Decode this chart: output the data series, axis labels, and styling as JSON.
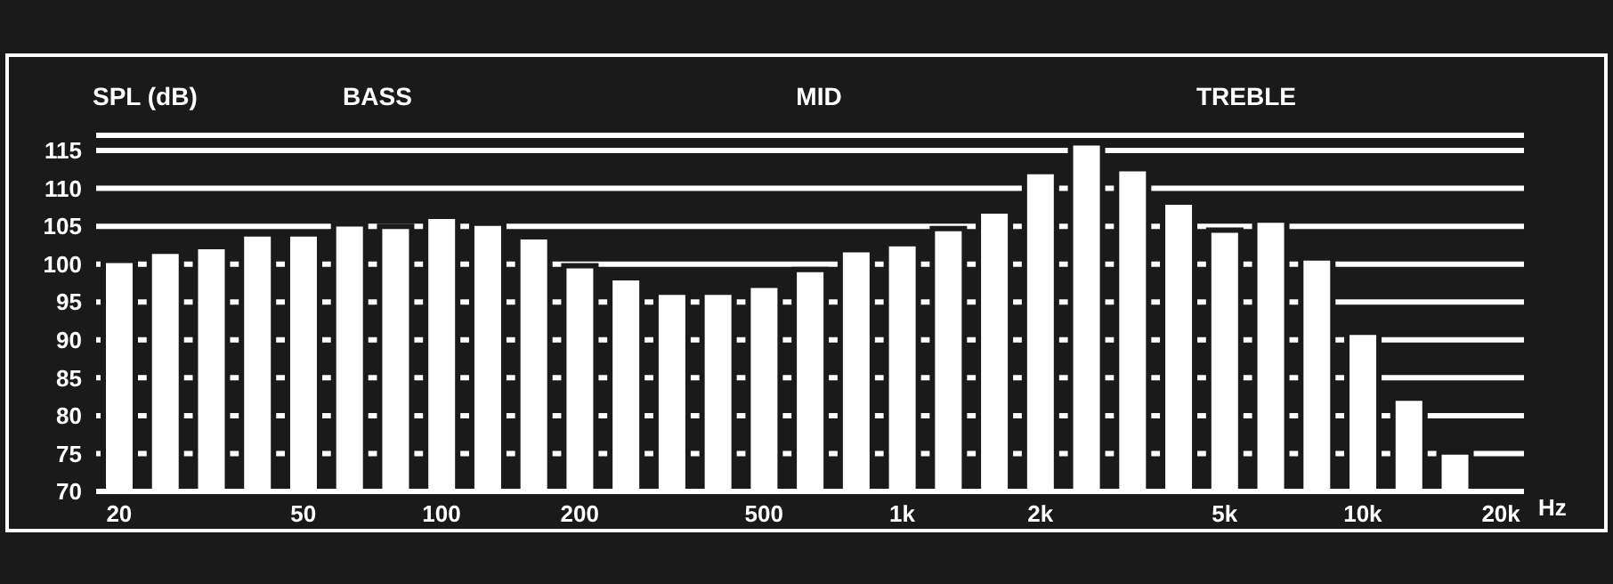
{
  "chart_data": {
    "type": "bar",
    "ylabel": "SPL (dB)",
    "xlabel": "Hz",
    "annotations": [
      "BASS",
      "MID",
      "TREBLE"
    ],
    "categories": [
      "20",
      null,
      null,
      null,
      "50",
      null,
      null,
      "100",
      null,
      null,
      "200",
      null,
      null,
      null,
      "500",
      null,
      null,
      "1k",
      null,
      null,
      "2k",
      null,
      null,
      null,
      "5k",
      null,
      null,
      "10k",
      null,
      null,
      "20k"
    ],
    "values": [
      100.5,
      101.7,
      102.3,
      104,
      104,
      105.3,
      105,
      106.3,
      105.4,
      103.6,
      99.8,
      98.2,
      96.3,
      96.3,
      97.2,
      99.3,
      101.9,
      102.7,
      104.7,
      107,
      112.2,
      116,
      112.6,
      108.2,
      104.5,
      105.8,
      100.8,
      91,
      82.3,
      75.2,
      null
    ],
    "color": "#ffffff",
    "ylim": [
      70,
      117
    ],
    "yticks": [
      70,
      75,
      80,
      85,
      90,
      95,
      100,
      105,
      110,
      115
    ],
    "grid": "y"
  }
}
